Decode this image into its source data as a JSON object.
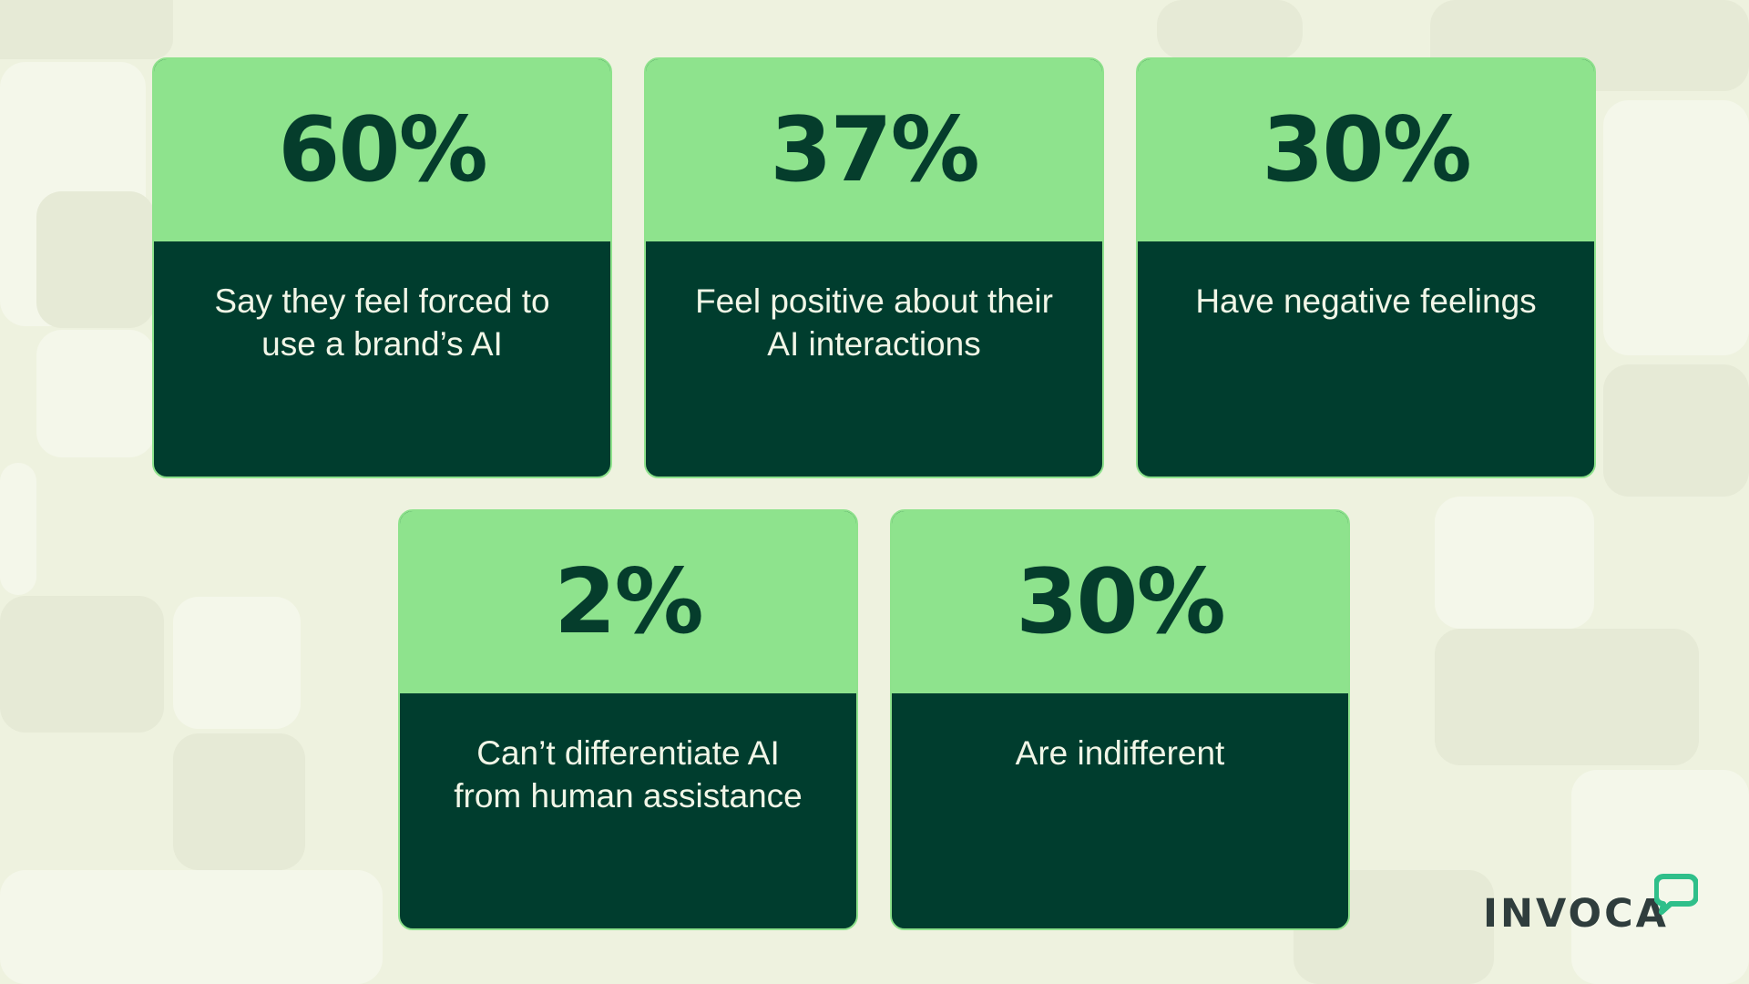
{
  "stats": [
    {
      "value": "60%",
      "label_line1": "Say they feel forced to",
      "label_line2": "use a brand’s AI"
    },
    {
      "value": "37%",
      "label_line1": "Feel positive about their",
      "label_line2": "AI interactions"
    },
    {
      "value": "30%",
      "label_line1": "Have negative feelings",
      "label_line2": ""
    },
    {
      "value": "2%",
      "label_line1": "Can’t differentiate AI",
      "label_line2": "from human assistance"
    },
    {
      "value": "30%",
      "label_line1": "Are indifferent",
      "label_line2": ""
    }
  ],
  "brand": {
    "name": "INVOCA",
    "icon": "speech-bubble-icon"
  },
  "colors": {
    "background": "#eef2df",
    "card_top": "#8ee38d",
    "card_bottom": "#003d2e",
    "stat_text": "#053d2c",
    "label_text": "#f1f6e7",
    "logo_text": "#2f3d3d",
    "logo_accent": "#2fbf8a"
  }
}
